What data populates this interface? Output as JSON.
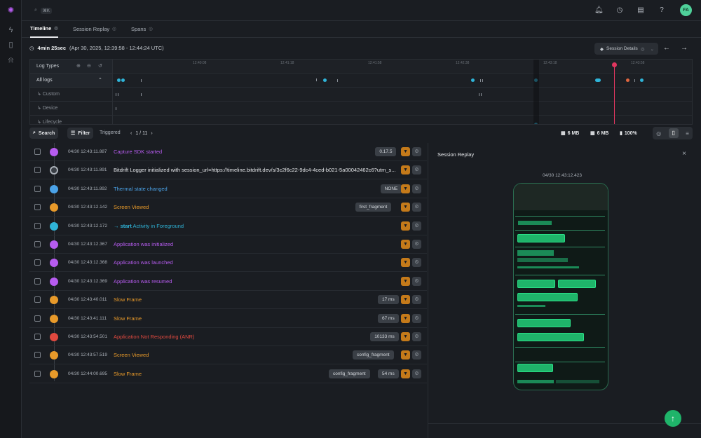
{
  "topbar": {
    "search_shortcut": "⌘K",
    "avatar_initials": "FA"
  },
  "tabs": [
    {
      "label": "Timeline"
    },
    {
      "label": "Session Replay"
    },
    {
      "label": "Spans"
    }
  ],
  "session": {
    "duration": "4min 25sec",
    "range": "(Apr 30, 2025, 12:39:58 - 12:44:24 UTC)",
    "details_label": "Session Details"
  },
  "timeline": {
    "header": "Log Types",
    "rows": [
      "All logs",
      "Custom",
      "Device",
      "Lifecycle"
    ],
    "ticks": [
      "12:40:08",
      "12:41:18",
      "12:41:58",
      "12:42:38",
      "12:43:18",
      "12:43:58"
    ]
  },
  "toolbar": {
    "search_label": "Search",
    "filter_label": "Filter",
    "triggered_label": "Triggered",
    "page": "1 / 11",
    "stat1": "6 MB",
    "stat2": "6 MB",
    "battery": "100%"
  },
  "logs": [
    {
      "ts": "04/30 12:43:11.887",
      "msg": "Capture SDK started",
      "color": "#b75cf0",
      "pills": [
        "0.17.5"
      ]
    },
    {
      "ts": "04/30 12:43:11.891",
      "msg": "Bitdrift Logger initialized with session_url=https://timeline.bitdrift.dev/s/3c2f6c22-9dc4-4ced-b021-5a00042462c6?utm_s...",
      "color": "#e6e8eb",
      "pills": []
    },
    {
      "ts": "04/30 12:43:11.892",
      "msg": "Thermal state changed",
      "color": "#4ba3e8",
      "pills": [
        "NONE"
      ]
    },
    {
      "ts": "04/30 12:43:12.142",
      "msg": "Screen Viewed",
      "color": "#e89a2a",
      "pills": [
        "first_fragment"
      ]
    },
    {
      "ts": "04/30 12:43:12.172",
      "msg": "Activity in Foreground",
      "arrow": "→ start",
      "color": "#2fb4d8",
      "pills": []
    },
    {
      "ts": "04/30 12:43:12.367",
      "msg": "Application was initialized",
      "color": "#b75cf0",
      "pills": []
    },
    {
      "ts": "04/30 12:43:12.368",
      "msg": "Application was launched",
      "color": "#b75cf0",
      "pills": []
    },
    {
      "ts": "04/30 12:43:12.369",
      "msg": "Application was resumed",
      "color": "#b75cf0",
      "pills": []
    },
    {
      "ts": "04/30 12:43:40.011",
      "msg": "Slow Frame",
      "color": "#e89a2a",
      "pills": [
        "17 ms"
      ]
    },
    {
      "ts": "04/30 12:43:41.111",
      "msg": "Slow Frame",
      "color": "#e89a2a",
      "pills": [
        "67 ms"
      ]
    },
    {
      "ts": "04/30 12:43:54.501",
      "msg": "Application Not Responding (ANR)",
      "color": "#e0493f",
      "pills": [
        "10133 ms"
      ]
    },
    {
      "ts": "04/30 12:43:57.519",
      "msg": "Screen Viewed",
      "color": "#e89a2a",
      "pills": [
        "config_fragment"
      ]
    },
    {
      "ts": "04/30 12:44:00.695",
      "msg": "Slow Frame",
      "color": "#e89a2a",
      "pills": [
        "config_fragment",
        "54 ms"
      ]
    }
  ],
  "replay": {
    "title": "Session Replay",
    "timestamp": "04/30 12:43:12.423"
  }
}
